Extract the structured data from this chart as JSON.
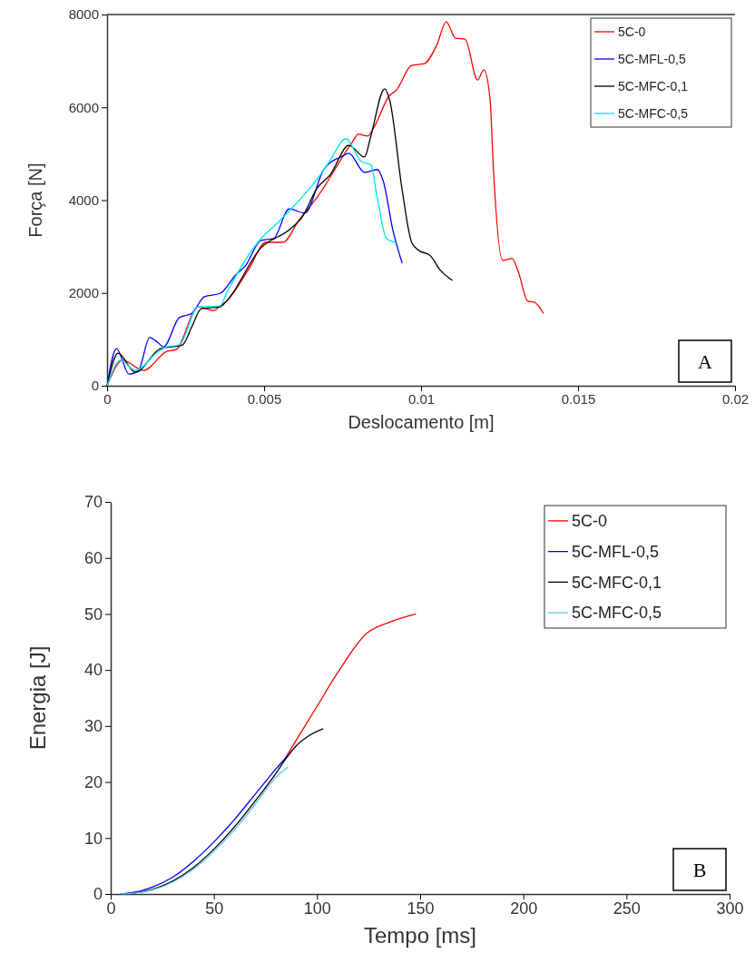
{
  "chart_data": [
    {
      "type": "line",
      "xlabel": "Deslocamento [m]",
      "ylabel": "Força [N]",
      "xlim": [
        0,
        0.02
      ],
      "ylim": [
        0,
        8000
      ],
      "xticks": [
        0,
        0.005,
        0.01,
        0.015,
        0.02
      ],
      "yticks": [
        0,
        2000,
        4000,
        6000,
        8000
      ],
      "grid": false,
      "legend": "top right",
      "marker": "none",
      "line_style": "solid",
      "annotations": [
        "A"
      ],
      "series": [
        {
          "name": "5C-0",
          "color": "#ff0000",
          "x": [
            0,
            0.0005,
            0.00116,
            0.0019,
            0.0022,
            0.0029,
            0.0034,
            0.0036,
            0.0038,
            0.0045,
            0.00506,
            0.0056,
            0.0061,
            0.0067,
            0.0078,
            0.008,
            0.0083,
            0.0085,
            0.009,
            0.0092,
            0.0097,
            0.0101,
            0.0105,
            0.0108,
            0.0111,
            0.0114,
            0.0118,
            0.012,
            0.0122,
            0.0123,
            0.0126,
            0.0129,
            0.0131,
            0.0134,
            0.0136,
            0.0139
          ],
          "values": [
            0,
            550,
            330,
            740,
            780,
            1700,
            1620,
            1720,
            1820,
            2500,
            3090,
            3090,
            3560,
            4070,
            5240,
            5420,
            5380,
            5570,
            6260,
            6360,
            6900,
            6940,
            7340,
            7840,
            7490,
            7470,
            6590,
            6810,
            6160,
            4730,
            2700,
            2740,
            2450,
            1820,
            1800,
            1560
          ]
        },
        {
          "name": "5C-MFL-0,5",
          "color": "#0000ff",
          "x": [
            0,
            0.0003,
            0.0007,
            0.001,
            0.00136,
            0.0016,
            0.0018,
            0.0023,
            0.0027,
            0.0031,
            0.0036,
            0.0041,
            0.0044,
            0.0049,
            0.0053,
            0.0058,
            0.0063,
            0.0069,
            0.0075,
            0.0077,
            0.0082,
            0.0086,
            0.0088,
            0.0091,
            0.0094
          ],
          "values": [
            0,
            800,
            250,
            330,
            1040,
            940,
            840,
            1470,
            1560,
            1920,
            1990,
            2390,
            2580,
            3130,
            3170,
            3810,
            3720,
            4660,
            4950,
            5010,
            4600,
            4660,
            4400,
            3360,
            2640
          ]
        },
        {
          "name": "5C-MFC-0,1",
          "color": "#000000",
          "x": [
            0,
            0.00035,
            0.0009,
            0.0017,
            0.0024,
            0.0027,
            0.003,
            0.0036,
            0.0038,
            0.0049,
            0.0058,
            0.0062,
            0.0067,
            0.0071,
            0.0077,
            0.0082,
            0.0084,
            0.00884,
            0.009,
            0.0094,
            0.0097,
            0.0099,
            0.0103,
            0.0106,
            0.011
          ],
          "values": [
            0,
            700,
            290,
            800,
            880,
            1270,
            1660,
            1700,
            1820,
            2970,
            3360,
            3620,
            4270,
            4540,
            5180,
            4930,
            5380,
            6400,
            6160,
            4210,
            3090,
            2930,
            2800,
            2500,
            2270
          ]
        },
        {
          "name": "5C-MFC-0,5",
          "color": "#00e5ee",
          "x": [
            0,
            0.00043,
            0.0009,
            0.0016,
            0.0019,
            0.0023,
            0.0029,
            0.0036,
            0.0038,
            0.0048,
            0.0055,
            0.0067,
            0.0071,
            0.0076,
            0.0081,
            0.0084,
            0.0086,
            0.0089,
            0.0092
          ],
          "values": [
            0,
            550,
            330,
            720,
            840,
            880,
            1700,
            1720,
            1990,
            3090,
            3560,
            4460,
            4850,
            5320,
            4830,
            4760,
            4070,
            3170,
            3090
          ]
        }
      ]
    },
    {
      "type": "line",
      "xlabel": "Tempo [ms]",
      "ylabel": "Energia [J]",
      "xlim": [
        0,
        300
      ],
      "ylim": [
        0,
        70
      ],
      "xticks": [
        0,
        50,
        100,
        150,
        200,
        250,
        300
      ],
      "yticks": [
        0,
        10,
        20,
        30,
        40,
        50,
        60,
        70
      ],
      "grid": false,
      "legend": "top right",
      "marker": "none",
      "line_style": "solid",
      "annotations": [
        "B"
      ],
      "series": [
        {
          "name": "5C-0",
          "color": "#ff0000",
          "x": [
            85,
            100,
            110,
            124,
            135,
            148
          ],
          "values": [
            24.5,
            33.5,
            39.5,
            46.5,
            48.5,
            50
          ]
        },
        {
          "name": "5C-MFL-0,5",
          "color": "#0000ff",
          "x": [
            5,
            10,
            20,
            30,
            40,
            50,
            60,
            70,
            80,
            86
          ],
          "values": [
            0,
            0.2,
            1.2,
            3,
            5.8,
            9.3,
            13.3,
            17.8,
            22.3,
            24.8
          ]
        },
        {
          "name": "5C-MFC-0,1",
          "color": "#000000",
          "x": [
            5,
            10,
            20,
            30,
            40,
            50,
            60,
            70,
            80,
            85,
            90,
            95,
            103
          ],
          "values": [
            0,
            0.1,
            0.8,
            2.3,
            4.7,
            8,
            12,
            16.6,
            21.5,
            24.2,
            26.5,
            28,
            29.5
          ]
        },
        {
          "name": "5C-MFC-0,5",
          "color": "#5bc8f0",
          "x": [
            5,
            10,
            20,
            30,
            40,
            50,
            60,
            70,
            80,
            86
          ],
          "values": [
            0,
            0.1,
            0.7,
            2.1,
            4.4,
            7.6,
            11.5,
            16,
            20.8,
            22.7
          ]
        }
      ]
    }
  ]
}
